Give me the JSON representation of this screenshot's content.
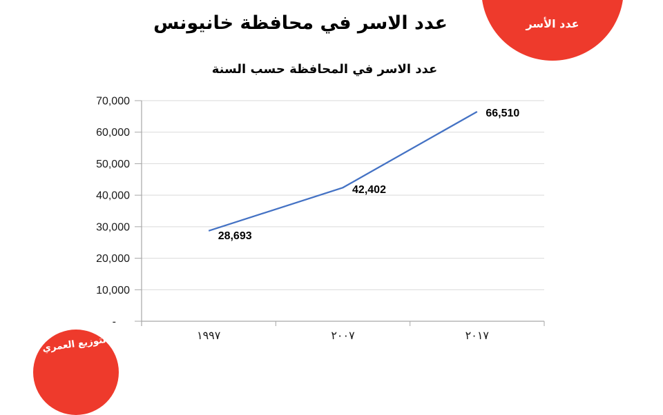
{
  "slide": {
    "title": "عدد الاسر في محافظة خانيونس",
    "badges": {
      "top_right": "عدد الأسر",
      "bottom_left": "التوزيع العمري"
    },
    "colors": {
      "badge_red": "#EE3A2C",
      "badge_text": "#FFFFFF",
      "line_blue": "#4472C4",
      "gridline": "#D9D9D9",
      "axis": "#A6A6A6"
    }
  },
  "chart_data": {
    "type": "line",
    "title": "عدد الاسر في المحافظة حسب السنة",
    "categories": [
      "١٩٩٧",
      "٢٠٠٧",
      "٢٠١٧"
    ],
    "categories_values": [
      1997,
      2007,
      2017
    ],
    "series": [
      {
        "name": "عدد الاسر",
        "values": [
          28693,
          42402,
          66510
        ]
      }
    ],
    "data_labels": [
      "28,693",
      "42,402",
      "66,510"
    ],
    "y_ticks": [
      "70,000",
      "60,000",
      "50,000",
      "40,000",
      "30,000",
      "20,000",
      "10,000",
      "-"
    ],
    "ylim": [
      0,
      70000
    ],
    "grid": true,
    "legend": "none"
  }
}
